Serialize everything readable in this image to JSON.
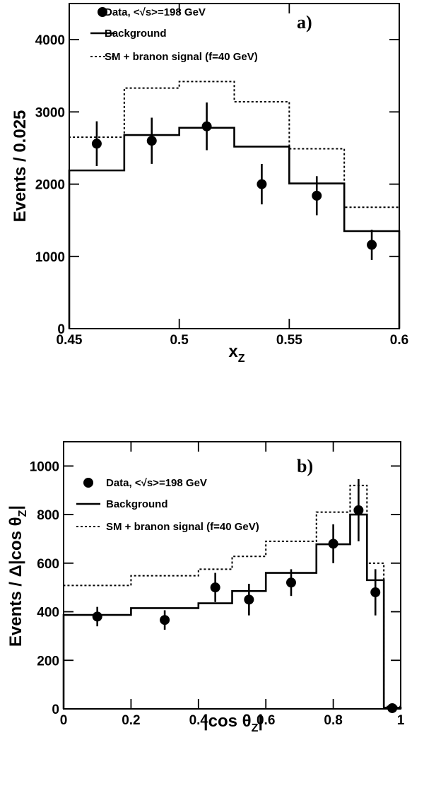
{
  "chart_data": [
    {
      "type": "line",
      "panel_label": "a)",
      "xlabel": "x",
      "xlabel_sub": "Z",
      "ylabel": "Events / 0.025",
      "xlim": [
        0.45,
        0.6
      ],
      "ylim": [
        0,
        4500
      ],
      "xticks": [
        "0.45",
        "0.5",
        "0.55",
        "0.6"
      ],
      "xtick_values": [
        0.45,
        0.5,
        0.55,
        0.6
      ],
      "yticks": [
        "0",
        "1000",
        "2000",
        "3000",
        "4000"
      ],
      "ytick_values": [
        0,
        1000,
        2000,
        3000,
        4000
      ],
      "legend": [
        {
          "label": "Data, <√s>=198 GeV",
          "style": "marker"
        },
        {
          "label": "Background",
          "style": "solid"
        },
        {
          "label": "SM + branon signal (f=40 GeV)",
          "style": "dotted"
        }
      ],
      "legend_position": "top-left",
      "bin_edges": [
        0.45,
        0.475,
        0.5,
        0.525,
        0.55,
        0.575,
        0.6
      ],
      "background": [
        2190,
        2680,
        2780,
        2520,
        2010,
        1350
      ],
      "signal": [
        2650,
        3330,
        3420,
        3140,
        2490,
        1680
      ],
      "data": {
        "x": [
          0.4625,
          0.4875,
          0.5125,
          0.5375,
          0.5625,
          0.5875
        ],
        "y": [
          2560,
          2600,
          2800,
          2000,
          1840,
          1160
        ],
        "err": [
          310,
          320,
          330,
          280,
          270,
          210
        ]
      }
    },
    {
      "type": "line",
      "panel_label": "b)",
      "xlabel": "|cos θ",
      "xlabel_sub": "Z",
      "xlabel_end": "|",
      "ylabel": "Events / Δ|cos θ",
      "ylabel_sub": "Z",
      "ylabel_end": "|",
      "xlim": [
        0,
        1
      ],
      "ylim": [
        0,
        1100
      ],
      "xticks": [
        "0",
        "0.2",
        "0.4",
        "0.6",
        "0.8",
        "1"
      ],
      "xtick_values": [
        0,
        0.2,
        0.4,
        0.6,
        0.8,
        1
      ],
      "yticks": [
        "0",
        "200",
        "400",
        "600",
        "800",
        "1000"
      ],
      "ytick_values": [
        0,
        200,
        400,
        600,
        800,
        1000
      ],
      "legend": [
        {
          "label": "Data, <√s>=198 GeV",
          "style": "marker"
        },
        {
          "label": "Background",
          "style": "solid"
        },
        {
          "label": "SM + branon signal (f=40 GeV)",
          "style": "dotted"
        }
      ],
      "legend_position": "top-left",
      "bin_edges": [
        0,
        0.2,
        0.4,
        0.5,
        0.6,
        0.75,
        0.85,
        0.9,
        0.95,
        1.0
      ],
      "background": [
        387,
        415,
        435,
        485,
        560,
        678,
        800,
        530,
        5
      ],
      "signal": [
        508,
        548,
        575,
        628,
        690,
        810,
        920,
        600,
        10
      ],
      "data": {
        "x": [
          0.1,
          0.3,
          0.45,
          0.55,
          0.675,
          0.8,
          0.875,
          0.925,
          0.975
        ],
        "y": [
          380,
          366,
          500,
          450,
          520,
          680,
          818,
          480,
          3
        ],
        "err": [
          40,
          40,
          60,
          65,
          55,
          80,
          128,
          95,
          5
        ]
      }
    }
  ]
}
